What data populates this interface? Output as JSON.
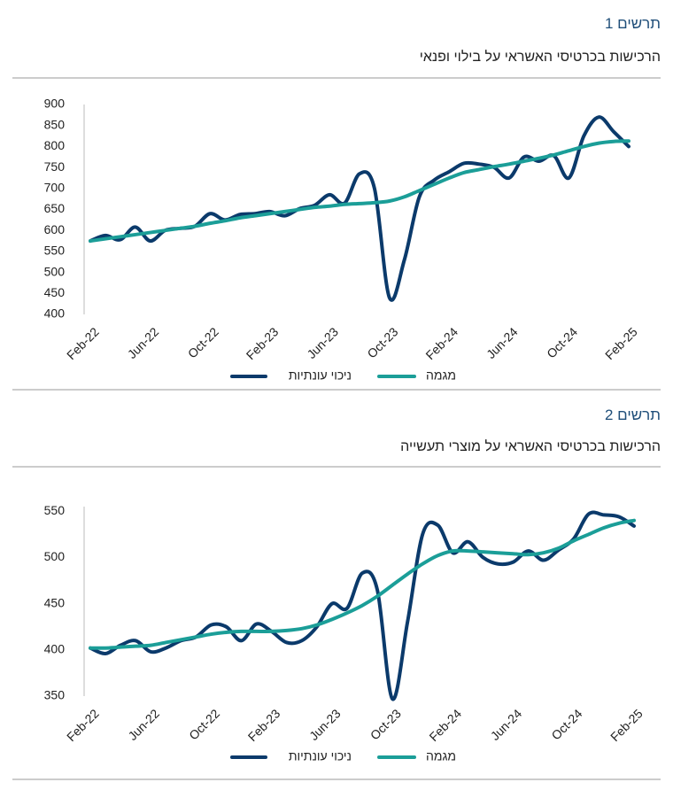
{
  "chart_data": [
    {
      "type": "line",
      "figure_label": "תרשים 1",
      "title": "הרכישות בכרטיסי האשראי על בילוי ופנאי",
      "categories": [
        "Feb-22",
        null,
        null,
        null,
        "Jun-22",
        null,
        null,
        null,
        "Oct-22",
        null,
        null,
        null,
        "Feb-23",
        null,
        null,
        null,
        "Jun-23",
        null,
        null,
        null,
        "Oct-23",
        null,
        null,
        null,
        "Feb-24",
        null,
        null,
        null,
        "Jun-24",
        null,
        null,
        null,
        "Oct-24",
        null,
        null,
        null,
        "Feb-25"
      ],
      "series": [
        {
          "name": "ניכוי עונתיות",
          "color": "#0b3a6b",
          "values": [
            575,
            588,
            578,
            608,
            575,
            600,
            605,
            610,
            640,
            625,
            638,
            640,
            645,
            635,
            652,
            660,
            685,
            665,
            735,
            700,
            440,
            530,
            680,
            720,
            740,
            760,
            758,
            750,
            725,
            775,
            765,
            778,
            725,
            825,
            870,
            835,
            800
          ]
        },
        {
          "name": "מגמה",
          "color": "#1b9e98",
          "values": [
            575,
            580,
            585,
            590,
            595,
            600,
            605,
            610,
            617,
            623,
            630,
            635,
            640,
            645,
            650,
            655,
            658,
            662,
            664,
            666,
            670,
            680,
            695,
            710,
            725,
            738,
            745,
            752,
            758,
            765,
            772,
            780,
            790,
            800,
            808,
            812,
            813
          ]
        }
      ],
      "ylim": [
        400,
        900
      ],
      "yticks": [
        400,
        450,
        500,
        550,
        600,
        650,
        700,
        750,
        800,
        850,
        900
      ],
      "grid": false,
      "legend": "bottom"
    },
    {
      "type": "line",
      "figure_label": "תרשים 2",
      "title": "הרכישות בכרטיסי האשראי על מוצרי תעשייה",
      "categories": [
        "Feb-22",
        null,
        null,
        null,
        "Jun-22",
        null,
        null,
        null,
        "Oct-22",
        null,
        null,
        null,
        "Feb-23",
        null,
        null,
        null,
        "Jun-23",
        null,
        null,
        null,
        "Oct-23",
        null,
        null,
        null,
        "Feb-24",
        null,
        null,
        null,
        "Jun-24",
        null,
        null,
        null,
        "Oct-24",
        null,
        null,
        null,
        "Feb-25"
      ],
      "series": [
        {
          "name": "ניכוי עונתיות",
          "color": "#0b3a6b",
          "values": [
            402,
            396,
            405,
            410,
            398,
            402,
            410,
            414,
            427,
            425,
            410,
            428,
            420,
            408,
            410,
            425,
            450,
            445,
            483,
            465,
            347,
            430,
            525,
            535,
            505,
            517,
            500,
            493,
            495,
            507,
            497,
            508,
            520,
            547,
            546,
            544,
            534
          ]
        },
        {
          "name": "מגמה",
          "color": "#1b9e98",
          "values": [
            402,
            402,
            403,
            404,
            405,
            408,
            411,
            414,
            417,
            419,
            420,
            420,
            420,
            421,
            423,
            427,
            433,
            440,
            448,
            458,
            470,
            482,
            493,
            502,
            507,
            507,
            506,
            505,
            504,
            503,
            505,
            510,
            518,
            525,
            532,
            537,
            540
          ]
        }
      ],
      "ylim": [
        350,
        555
      ],
      "yticks": [
        350,
        400,
        450,
        500,
        550
      ],
      "grid": false,
      "legend": "bottom"
    }
  ]
}
